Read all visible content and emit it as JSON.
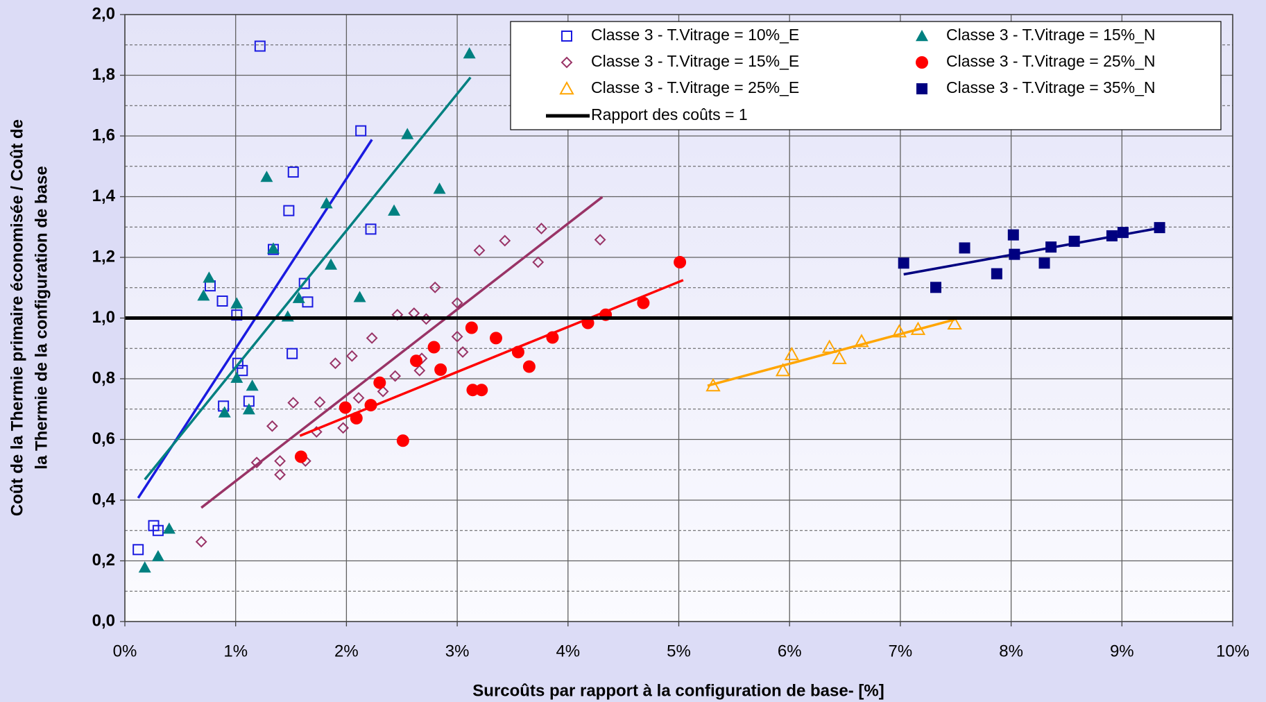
{
  "chart_data": {
    "type": "scatter",
    "xlabel": "Surcoûts par rapport à la configuration de base- [%]",
    "ylabel": [
      "Coût de la Thermie primaire économisée / Coût de",
      "la Thermie de la configuration de base"
    ],
    "xlim": [
      0,
      10
    ],
    "xticks": [
      {
        "value": 0,
        "label": "0%"
      },
      {
        "value": 1,
        "label": "1%"
      },
      {
        "value": 2,
        "label": "2%"
      },
      {
        "value": 3,
        "label": "3%"
      },
      {
        "value": 4,
        "label": "4%"
      },
      {
        "value": 5,
        "label": "5%"
      },
      {
        "value": 6,
        "label": "6%"
      },
      {
        "value": 7,
        "label": "7%"
      },
      {
        "value": 8,
        "label": "8%"
      },
      {
        "value": 9,
        "label": "9%"
      },
      {
        "value": 10,
        "label": "10%"
      }
    ],
    "ylim": [
      0,
      2
    ],
    "yticks": [
      {
        "value": 0,
        "label": "0,0"
      },
      {
        "value": 0.2,
        "label": "0,2"
      },
      {
        "value": 0.4,
        "label": "0,4"
      },
      {
        "value": 0.6,
        "label": "0,6"
      },
      {
        "value": 0.8,
        "label": "0,8"
      },
      {
        "value": 1,
        "label": "1,0"
      },
      {
        "value": 1.2,
        "label": "1,2"
      },
      {
        "value": 1.4,
        "label": "1,4"
      },
      {
        "value": 1.6,
        "label": "1,6"
      },
      {
        "value": 1.8,
        "label": "1,8"
      },
      {
        "value": 2,
        "label": "2,0"
      }
    ],
    "y_minor_ticks": [
      0.1,
      0.3,
      0.5,
      0.7,
      0.9,
      1.1,
      1.3,
      1.5,
      1.7,
      1.9
    ],
    "grid": true,
    "legend": "top-right",
    "reference_line": {
      "name": "Rapport des coûts = 1",
      "value": 1,
      "color": "#000000"
    },
    "series": [
      {
        "name": "Classe 3 - T.Vitrage = 10%_E",
        "color": "#1a1ae0",
        "marker": "square",
        "filled": false,
        "x": [
          0.12,
          0.26,
          0.3,
          0.77,
          0.88,
          1.01,
          1.02,
          1.06,
          0.89,
          1.12,
          1.22,
          1.34,
          1.48,
          1.52,
          1.51,
          1.62,
          1.65,
          2.13,
          2.22
        ],
        "values": [
          0.237,
          0.316,
          0.3,
          1.106,
          1.056,
          1.01,
          0.851,
          0.827,
          0.71,
          0.726,
          1.896,
          1.226,
          1.354,
          1.481,
          0.883,
          1.114,
          1.053,
          1.617,
          1.293
        ],
        "trend": {
          "x": [
            0.12,
            2.23
          ],
          "values": [
            0.407,
            1.588
          ]
        }
      },
      {
        "name": "Classe 3 - T.Vitrage = 15%_E",
        "color": "#993366",
        "marker": "diamond",
        "filled": false,
        "x": [
          0.69,
          1.19,
          1.33,
          1.4,
          1.4,
          1.52,
          1.63,
          1.73,
          1.76,
          1.9,
          1.97,
          2.05,
          2.11,
          2.23,
          2.33,
          2.44,
          2.46,
          2.61,
          2.66,
          2.68,
          2.72,
          2.8,
          3.0,
          3.0,
          3.05,
          3.2,
          3.43,
          3.73,
          3.76,
          4.29
        ],
        "values": [
          0.263,
          0.524,
          0.644,
          0.484,
          0.529,
          0.721,
          0.529,
          0.625,
          0.723,
          0.851,
          0.638,
          0.875,
          0.737,
          0.934,
          0.758,
          0.809,
          1.011,
          1.016,
          0.827,
          0.867,
          0.997,
          1.101,
          0.939,
          1.05,
          0.888,
          1.223,
          1.255,
          1.184,
          1.295,
          1.258
        ],
        "trend": {
          "x": [
            0.69,
            4.31
          ],
          "values": [
            0.375,
            1.399
          ]
        }
      },
      {
        "name": "Classe 3 - T.Vitrage = 25%_E",
        "color": "#ffa500",
        "marker": "triangle",
        "filled": false,
        "x": [
          5.31,
          5.94,
          6.02,
          6.36,
          6.45,
          6.65,
          6.99,
          7.16,
          7.49
        ],
        "values": [
          0.777,
          0.827,
          0.88,
          0.904,
          0.867,
          0.923,
          0.955,
          0.963,
          0.981
        ],
        "trend": {
          "x": [
            5.26,
            7.49
          ],
          "values": [
            0.777,
            0.995
          ]
        }
      },
      {
        "name": "Classe 3 - T.Vitrage = 15%_N",
        "color": "#008080",
        "marker": "triangle",
        "filled": true,
        "x": [
          0.18,
          0.3,
          0.4,
          0.71,
          0.76,
          0.9,
          1.01,
          1.01,
          1.12,
          1.15,
          1.28,
          1.34,
          1.47,
          1.57,
          1.82,
          1.86,
          2.12,
          2.43,
          2.55,
          2.84,
          3.11
        ],
        "values": [
          0.178,
          0.215,
          0.306,
          1.074,
          1.133,
          0.689,
          1.048,
          0.803,
          0.699,
          0.777,
          1.465,
          1.229,
          1.005,
          1.066,
          1.378,
          1.176,
          1.069,
          1.354,
          1.606,
          1.426,
          1.872
        ],
        "trend": {
          "x": [
            0.18,
            3.12
          ],
          "values": [
            0.468,
            1.793
          ]
        }
      },
      {
        "name": "Classe 3 - T.Vitrage = 25%_N",
        "color": "#ff0000",
        "marker": "circle",
        "filled": true,
        "x": [
          1.59,
          1.99,
          2.09,
          2.22,
          2.3,
          2.51,
          2.63,
          2.79,
          2.85,
          3.13,
          3.14,
          3.22,
          3.35,
          3.55,
          3.65,
          3.86,
          4.18,
          4.34,
          4.68,
          5.01
        ],
        "values": [
          0.543,
          0.705,
          0.67,
          0.713,
          0.787,
          0.596,
          0.859,
          0.904,
          0.83,
          0.968,
          0.763,
          0.763,
          0.934,
          0.888,
          0.84,
          0.936,
          0.984,
          1.011,
          1.05,
          1.184
        ],
        "trend": {
          "x": [
            1.58,
            5.04
          ],
          "values": [
            0.612,
            1.125
          ]
        }
      },
      {
        "name": "Classe 3 - T.Vitrage = 35%_N",
        "color": "#000080",
        "marker": "square",
        "filled": true,
        "x": [
          7.03,
          7.32,
          7.58,
          7.87,
          8.02,
          8.03,
          8.3,
          8.36,
          8.57,
          8.91,
          9.01,
          9.34
        ],
        "values": [
          1.181,
          1.101,
          1.231,
          1.146,
          1.274,
          1.21,
          1.181,
          1.234,
          1.253,
          1.271,
          1.282,
          1.298
        ],
        "trend": {
          "x": [
            7.03,
            9.36
          ],
          "values": [
            1.144,
            1.298
          ]
        }
      }
    ]
  }
}
